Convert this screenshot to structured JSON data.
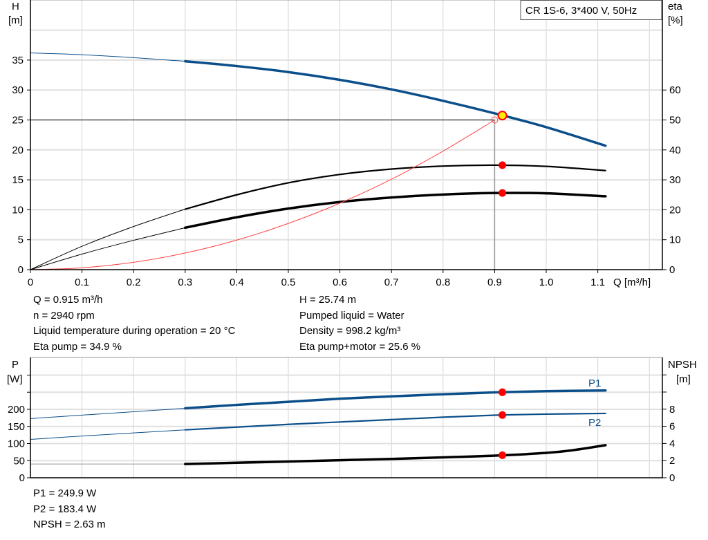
{
  "chart_data": [
    {
      "type": "line",
      "legend_box": "CR 1S-6, 3*400 V, 50Hz",
      "xlabel": "Q [m³/h]",
      "ylabel_left": "H",
      "ylabel_left_unit": "[m]",
      "ylabel_right": "eta",
      "ylabel_right_unit": "[%]",
      "xlim": [
        0,
        1.2
      ],
      "ylim_left": [
        0,
        45
      ],
      "ylim_right": [
        0,
        90
      ],
      "grid": true,
      "x_ticks": [
        "0",
        "0.1",
        "0.2",
        "0.3",
        "0.4",
        "0.5",
        "0.6",
        "0.7",
        "0.8",
        "0.9",
        "1.0",
        "1.1"
      ],
      "y_left_ticks": [
        "0",
        "5",
        "10",
        "15",
        "20",
        "25",
        "30",
        "35"
      ],
      "y_right_ticks": [
        "0",
        "10",
        "20",
        "30",
        "40",
        "50",
        "60"
      ],
      "series": [
        {
          "id": "H",
          "axis": "left",
          "color": "#0b4f8a",
          "x": [
            0,
            0.1,
            0.2,
            0.3,
            0.4,
            0.5,
            0.6,
            0.7,
            0.8,
            0.9,
            1.0,
            1.115
          ],
          "y": [
            36.2,
            35.9,
            35.4,
            34.8,
            34.0,
            33.0,
            31.7,
            30.1,
            28.2,
            26.1,
            23.8,
            20.7
          ],
          "bold_from": 0.3
        },
        {
          "id": "eta-pump",
          "axis": "right",
          "color": "#000000",
          "x": [
            0,
            0.1,
            0.2,
            0.3,
            0.4,
            0.5,
            0.6,
            0.7,
            0.8,
            0.9,
            1.0,
            1.115
          ],
          "y": [
            0,
            7.8,
            14.4,
            20.2,
            25.0,
            29.0,
            31.8,
            33.6,
            34.6,
            34.9,
            34.5,
            33.1
          ],
          "bold_from": 0.3
        },
        {
          "id": "eta-pump-motor",
          "axis": "right",
          "color": "#000000",
          "x": [
            0,
            0.1,
            0.2,
            0.3,
            0.4,
            0.5,
            0.6,
            0.7,
            0.8,
            0.9,
            1.0,
            1.115
          ],
          "y": [
            0,
            5.2,
            9.8,
            14.0,
            17.5,
            20.4,
            22.6,
            24.1,
            25.1,
            25.6,
            25.5,
            24.5
          ],
          "bold_from": 0.3
        },
        {
          "id": "system-curve",
          "axis": "left",
          "color": "#ff4040",
          "x": [
            0,
            0.1,
            0.2,
            0.3,
            0.4,
            0.5,
            0.6,
            0.7,
            0.8,
            0.9
          ],
          "y": [
            0,
            0.31,
            1.23,
            2.78,
            4.94,
            7.72,
            11.1,
            15.1,
            19.8,
            25.0
          ]
        }
      ],
      "duty_point": {
        "q": 0.915,
        "h": 25.74,
        "eta_pump": 34.9,
        "eta_pump_motor": 25.6
      },
      "requested_point": {
        "q": 0.9,
        "h": 25
      }
    },
    {
      "type": "line",
      "ylabel_left": "P",
      "ylabel_left_unit": "[W]",
      "ylabel_right": "NPSH",
      "ylabel_right_unit": "[m]",
      "xlim": [
        0,
        1.2
      ],
      "ylim_left": [
        0,
        350
      ],
      "ylim_right": [
        0,
        14
      ],
      "grid": true,
      "y_left_ticks": [
        "0",
        "50",
        "100",
        "150",
        "200",
        "",
        ""
      ],
      "y_right_ticks": [
        "0",
        "2",
        "4",
        "6",
        "8",
        "",
        ""
      ],
      "series": [
        {
          "id": "P1",
          "name": "P1",
          "axis": "left",
          "color": "#0b4f8a",
          "x": [
            0,
            0.1,
            0.2,
            0.3,
            0.4,
            0.5,
            0.6,
            0.7,
            0.8,
            0.9,
            1.0,
            1.115
          ],
          "y": [
            173,
            183,
            193,
            203,
            213,
            222,
            231,
            238,
            244,
            249.5,
            253,
            255
          ],
          "bold_from": 0.3
        },
        {
          "id": "P2",
          "name": "P2",
          "axis": "left",
          "color": "#0b4f8a",
          "x": [
            0,
            0.1,
            0.2,
            0.3,
            0.4,
            0.5,
            0.6,
            0.7,
            0.8,
            0.9,
            1.0,
            1.115
          ],
          "y": [
            112,
            122,
            131,
            140,
            148,
            156,
            163,
            170,
            177,
            182.8,
            186,
            188
          ],
          "bold_from": 0.3
        },
        {
          "id": "NPSH",
          "axis": "right",
          "color": "#000000",
          "x": [
            0,
            0.3,
            0.4,
            0.5,
            0.6,
            0.7,
            0.8,
            0.9,
            1.0,
            1.05,
            1.115
          ],
          "y": [
            1.6,
            1.6,
            1.75,
            1.9,
            2.05,
            2.2,
            2.38,
            2.58,
            2.9,
            3.2,
            3.8
          ],
          "bold_from": 0.3
        }
      ],
      "duty_point": {
        "q": 0.915,
        "p1": 249.9,
        "p2": 183.4,
        "npsh": 2.63
      }
    }
  ],
  "info_top_left": [
    "Q = 0.915 m³/h",
    "n = 2940 rpm",
    "Liquid temperature during operation = 20 °C",
    "Eta pump = 34.9 %"
  ],
  "info_top_right": [
    "H = 25.74 m",
    "Pumped liquid = Water",
    "Density = 998.2 kg/m³",
    "Eta pump+motor = 25.6 %"
  ],
  "info_bottom": [
    "P1 = 249.9 W",
    "P2 = 183.4 W",
    "NPSH = 2.63 m"
  ],
  "colors": {
    "curve_blue": "#0b4f8a",
    "duty_point": "#ffee00",
    "marker_red": "#ff0000",
    "grid": "#d4d4d4"
  }
}
